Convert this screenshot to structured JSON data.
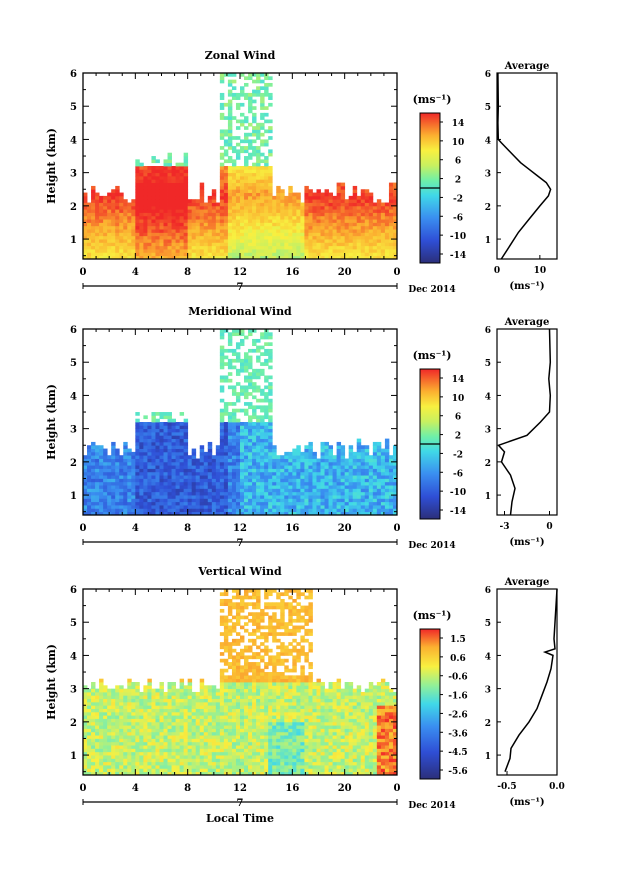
{
  "figure": {
    "date_label": "Dec 2014",
    "xlabel_bottom": "Local Time",
    "time_ticks": [
      "0",
      "4",
      "8",
      "12",
      "16",
      "20",
      "0"
    ],
    "day_label": "7",
    "height_ticks": [
      "1",
      "2",
      "3",
      "4",
      "5",
      "6"
    ],
    "units": "(ms⁻¹)"
  },
  "chart_data": [
    {
      "type": "heatmap",
      "title": "Zonal Wind",
      "xlabel": "",
      "ylabel": "Height (km)",
      "x_range": [
        0,
        24
      ],
      "ylim": [
        0.4,
        6
      ],
      "colorbar_ticks": [
        "14",
        "10",
        "6",
        "2",
        "-2",
        "-6",
        "-10",
        "-14"
      ],
      "colorbar_range": [
        -16,
        16
      ],
      "description_levels": {
        "low_level_max": 14,
        "typical_mid": 6
      },
      "average_profile": {
        "title": "Average",
        "xlabel": "(ms⁻¹)",
        "xlim": [
          0,
          14
        ],
        "xticks": [
          "0",
          "10"
        ],
        "points": [
          [
            1.0,
            0.4
          ],
          [
            3.0,
            0.8
          ],
          [
            5.0,
            1.2
          ],
          [
            7.5,
            1.6
          ],
          [
            10.0,
            2.0
          ],
          [
            12.0,
            2.3
          ],
          [
            12.5,
            2.5
          ],
          [
            11.5,
            2.7
          ],
          [
            9.5,
            2.9
          ],
          [
            7.5,
            3.1
          ],
          [
            5.5,
            3.3
          ],
          [
            4.0,
            3.5
          ],
          [
            2.5,
            3.7
          ],
          [
            1.0,
            3.9
          ],
          [
            0.3,
            4.0
          ],
          [
            0.2,
            4.5
          ],
          [
            0.3,
            5.0
          ],
          [
            0.2,
            6.0
          ]
        ]
      }
    },
    {
      "type": "heatmap",
      "title": "Meridional Wind",
      "xlabel": "",
      "ylabel": "Height (km)",
      "x_range": [
        0,
        24
      ],
      "ylim": [
        0.4,
        6
      ],
      "colorbar_ticks": [
        "14",
        "10",
        "6",
        "2",
        "-2",
        "-6",
        "-10",
        "-14"
      ],
      "colorbar_range": [
        -16,
        16
      ],
      "average_profile": {
        "title": "Average",
        "xlabel": "(ms⁻¹)",
        "xlim": [
          -3.5,
          0.5
        ],
        "xticks": [
          "-3",
          "0"
        ],
        "points": [
          [
            -2.6,
            0.4
          ],
          [
            -2.5,
            0.8
          ],
          [
            -2.3,
            1.2
          ],
          [
            -2.6,
            1.6
          ],
          [
            -3.2,
            2.0
          ],
          [
            -3.0,
            2.3
          ],
          [
            -3.4,
            2.5
          ],
          [
            -1.5,
            2.8
          ],
          [
            -0.6,
            3.2
          ],
          [
            0.0,
            3.5
          ],
          [
            0.05,
            4.0
          ],
          [
            -0.05,
            4.5
          ],
          [
            0.05,
            5.0
          ],
          [
            0.0,
            6.0
          ]
        ]
      }
    },
    {
      "type": "heatmap",
      "title": "Vertical Wind",
      "xlabel": "Local Time",
      "ylabel": "Height (km)",
      "x_range": [
        0,
        24
      ],
      "ylim": [
        0.4,
        6
      ],
      "colorbar_ticks": [
        "1.5",
        "0.6",
        "-0.6",
        "-1.6",
        "-2.6",
        "-3.6",
        "-4.5",
        "-5.6"
      ],
      "colorbar_range": [
        -6,
        2
      ],
      "average_profile": {
        "title": "Average",
        "xlabel": "(ms⁻¹)",
        "xlim": [
          -0.6,
          0.0
        ],
        "xticks": [
          "-0.5",
          "0.0"
        ],
        "points": [
          [
            -0.52,
            0.5
          ],
          [
            -0.47,
            0.9
          ],
          [
            -0.46,
            1.2
          ],
          [
            -0.38,
            1.6
          ],
          [
            -0.28,
            2.0
          ],
          [
            -0.2,
            2.4
          ],
          [
            -0.15,
            2.8
          ],
          [
            -0.1,
            3.2
          ],
          [
            -0.06,
            3.6
          ],
          [
            -0.04,
            4.0
          ],
          [
            -0.12,
            4.1
          ],
          [
            -0.02,
            4.2
          ],
          [
            -0.03,
            4.5
          ],
          [
            -0.02,
            5.0
          ],
          [
            0.0,
            6.0
          ]
        ]
      }
    }
  ]
}
